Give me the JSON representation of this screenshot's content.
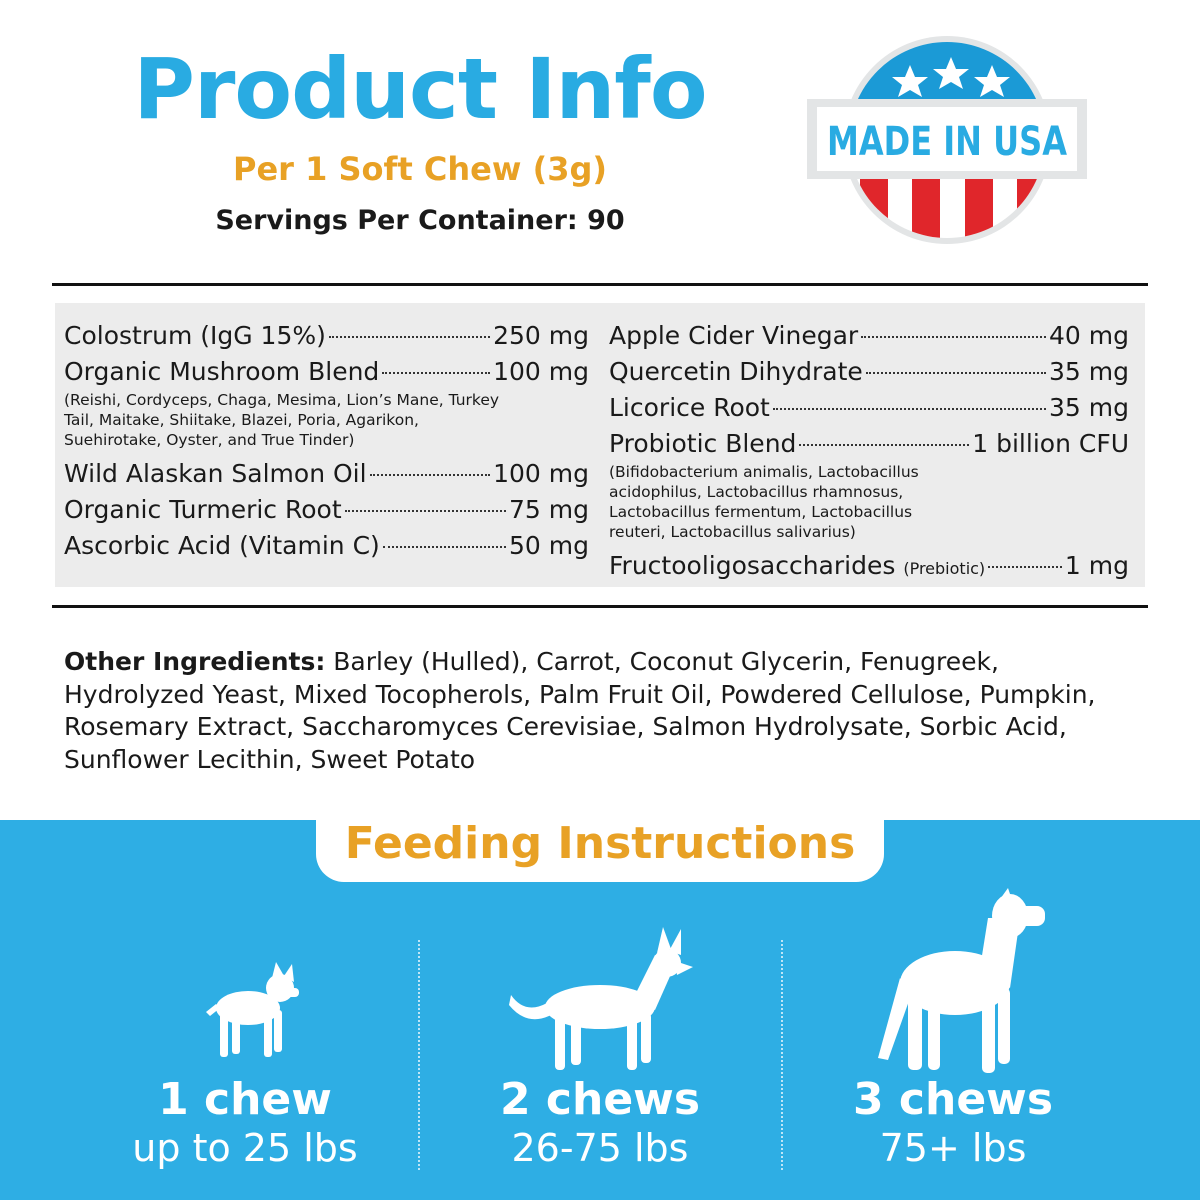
{
  "header": {
    "title": "Product Info",
    "serving": "Per 1 Soft Chew (3g)",
    "servings_per_container": "Servings Per Container: 90"
  },
  "badge": {
    "text": "MADE IN USA",
    "colors": {
      "blue": "#1b9ad6",
      "red": "#e0262b",
      "gray": "#e3e5e6"
    }
  },
  "ingredients_left": [
    {
      "name": "Colostrum (IgG 15%)",
      "amount": "250 mg"
    },
    {
      "name": "Organic Mushroom Blend",
      "amount": "100 mg",
      "note": "(Reishi, Cordyceps, Chaga, Mesima, Lion’s Mane, Turkey Tail, Maitake, Shiitake, Blazei, Poria, Agarikon, Suehirotake, Oyster, and True Tinder)"
    },
    {
      "name": "Wild Alaskan Salmon Oil",
      "amount": "100 mg"
    },
    {
      "name": "Organic Turmeric Root",
      "amount": "75 mg"
    },
    {
      "name": "Ascorbic Acid (Vitamin C)",
      "amount": "50 mg"
    }
  ],
  "ingredients_right": [
    {
      "name": "Apple Cider Vinegar",
      "amount": "40 mg"
    },
    {
      "name": "Quercetin Dihydrate",
      "amount": "35 mg"
    },
    {
      "name": "Licorice Root",
      "amount": "35 mg"
    },
    {
      "name": "Probiotic Blend",
      "amount": "1 billion CFU",
      "note": "(Bifidobacterium animalis, Lactobacillus acidophilus, Lactobacillus rhamnosus, Lactobacillus fermentum, Lactobacillus reuteri, Lactobacillus salivarius)"
    },
    {
      "name": "Fructooligosaccharides",
      "qualifier": "(Prebiotic)",
      "amount": "1 mg"
    }
  ],
  "other": {
    "label": "Other Ingredients:",
    "text": " Barley (Hulled), Carrot, Coconut Glycerin, Fenugreek, Hydrolyzed Yeast, Mixed Tocopherols, Palm Fruit Oil, Powdered Cellulose, Pumpkin, Rosemary Extract, Saccharomyces Cerevisiae, Salmon Hydrolysate, Sorbic Acid, Sunflower Lecithin, Sweet Potato"
  },
  "feeding": {
    "title": "Feeding Instructions",
    "items": [
      {
        "icon": "small-dog-icon",
        "amount": "1 chew",
        "weight": "up to 25 lbs"
      },
      {
        "icon": "medium-dog-icon",
        "amount": "2 chews",
        "weight": "26-75 lbs"
      },
      {
        "icon": "large-dog-icon",
        "amount": "3 chews",
        "weight": "75+ lbs"
      }
    ]
  },
  "colors": {
    "accent_blue": "#29abe2",
    "accent_orange": "#e8a125",
    "panel": "#2eaee4"
  }
}
